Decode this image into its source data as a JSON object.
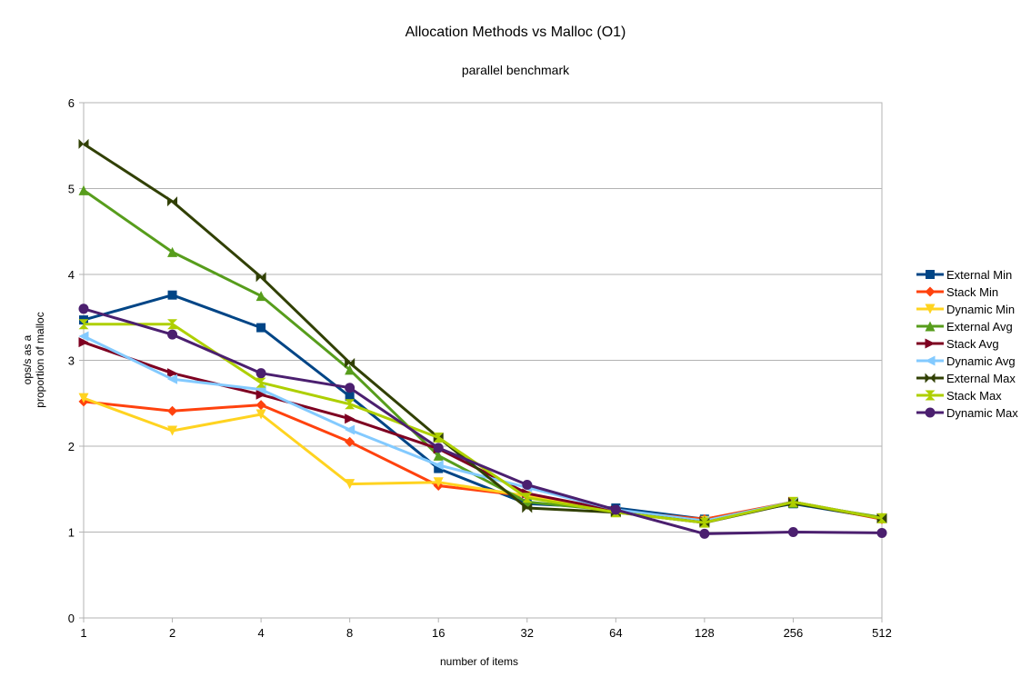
{
  "chart_data": {
    "type": "line",
    "title": "Allocation Methods vs Malloc (O1)",
    "subtitle": "parallel benchmark",
    "xlabel": "number of items",
    "ylabel_lines": [
      "ops/s as a",
      "proportion of malloc"
    ],
    "categories": [
      "1",
      "2",
      "4",
      "8",
      "16",
      "32",
      "64",
      "128",
      "256",
      "512"
    ],
    "ylim": [
      0,
      6
    ],
    "yticks": [
      "0",
      "1",
      "2",
      "3",
      "4",
      "5",
      "6"
    ],
    "grid": true,
    "legend_position": "right",
    "series": [
      {
        "name": "External Min",
        "color": "#004586",
        "marker": "square",
        "values": [
          3.47,
          3.76,
          3.38,
          2.58,
          1.74,
          1.33,
          1.28,
          1.15,
          1.33,
          1.16
        ]
      },
      {
        "name": "Stack Min",
        "color": "#ff420e",
        "marker": "diamond",
        "values": [
          2.52,
          2.41,
          2.48,
          2.05,
          1.54,
          1.42,
          1.24,
          1.15,
          1.35,
          1.15
        ]
      },
      {
        "name": "Dynamic Min",
        "color": "#ffd320",
        "marker": "triangle-down",
        "values": [
          2.56,
          2.18,
          2.37,
          1.56,
          1.58,
          1.42,
          1.24,
          1.13,
          1.35,
          1.16
        ]
      },
      {
        "name": "External Avg",
        "color": "#579d1c",
        "marker": "triangle-up",
        "values": [
          4.98,
          4.26,
          3.75,
          2.89,
          1.89,
          1.35,
          1.25,
          1.13,
          1.34,
          1.17
        ]
      },
      {
        "name": "Stack Avg",
        "color": "#7e0021",
        "marker": "triangle-right",
        "values": [
          3.21,
          2.85,
          2.6,
          2.32,
          1.97,
          1.45,
          1.25,
          1.13,
          1.35,
          1.16
        ]
      },
      {
        "name": "Dynamic Avg",
        "color": "#83caff",
        "marker": "triangle-left",
        "values": [
          3.28,
          2.78,
          2.66,
          2.19,
          1.78,
          1.52,
          1.26,
          1.13,
          1.35,
          1.16
        ]
      },
      {
        "name": "External Max",
        "color": "#314004",
        "marker": "bowtie",
        "values": [
          5.52,
          4.85,
          3.97,
          2.97,
          2.1,
          1.28,
          1.23,
          1.11,
          1.34,
          1.16
        ]
      },
      {
        "name": "Stack Max",
        "color": "#aecf00",
        "marker": "hourglass",
        "values": [
          3.42,
          3.42,
          2.74,
          2.49,
          2.1,
          1.4,
          1.23,
          1.11,
          1.35,
          1.16
        ]
      },
      {
        "name": "Dynamic Max",
        "color": "#4b1f6f",
        "marker": "circle",
        "values": [
          3.6,
          3.3,
          2.85,
          2.68,
          1.98,
          1.55,
          1.26,
          0.98,
          1.0,
          0.99
        ]
      }
    ]
  }
}
